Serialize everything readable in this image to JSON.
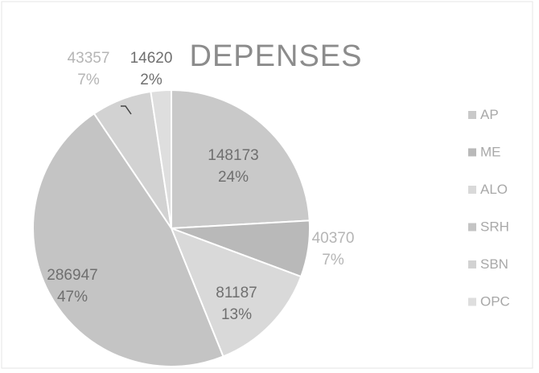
{
  "chart_data": {
    "type": "pie",
    "title": "DEPENSES",
    "categories": [
      "AP",
      "ME",
      "ALO",
      "SRH",
      "SBN",
      "OPC"
    ],
    "values": [
      148173,
      40370,
      81187,
      286947,
      43357,
      14620
    ],
    "percent_labels": [
      "24%",
      "7%",
      "13%",
      "47%",
      "7%",
      "2%"
    ],
    "colors": [
      "#c9c9c9",
      "#b9b9b9",
      "#d9d9d9",
      "#c4c4c4",
      "#d2d2d2",
      "#dedede"
    ],
    "start_angle_deg": 90,
    "direction": "clockwise",
    "legend_position": "right"
  }
}
